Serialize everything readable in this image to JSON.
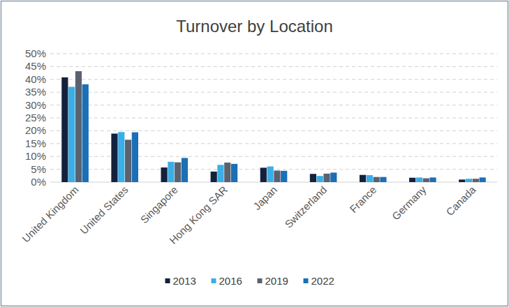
{
  "chart_data": {
    "type": "bar",
    "title": "Turnover by Location",
    "categories": [
      "United Kingdom",
      "United States",
      "Singapore",
      "Hong Kong SAR",
      "Japan",
      "Switzerland",
      "France",
      "Germany",
      "Canada"
    ],
    "series": [
      {
        "name": "2013",
        "color": "#14213d",
        "values": [
          40.8,
          18.9,
          5.7,
          4.1,
          5.6,
          3.2,
          2.8,
          1.7,
          1.0
        ]
      },
      {
        "name": "2016",
        "color": "#3aaee6",
        "values": [
          37.1,
          19.5,
          7.9,
          6.7,
          6.1,
          2.4,
          2.7,
          1.8,
          1.3
        ]
      },
      {
        "name": "2019",
        "color": "#5a6270",
        "values": [
          43.2,
          16.5,
          7.7,
          7.6,
          4.5,
          3.3,
          2.0,
          1.5,
          1.3
        ]
      },
      {
        "name": "2022",
        "color": "#1b6fb5",
        "values": [
          38.1,
          19.4,
          9.4,
          7.1,
          4.4,
          3.7,
          2.0,
          1.8,
          1.8
        ]
      }
    ],
    "ylim": [
      0,
      50
    ],
    "yticks": [
      {
        "value": 0,
        "label": "0%"
      },
      {
        "value": 5,
        "label": "5%"
      },
      {
        "value": 10,
        "label": "10%"
      },
      {
        "value": 15,
        "label": "15%"
      },
      {
        "value": 20,
        "label": "20%"
      },
      {
        "value": 25,
        "label": "25%"
      },
      {
        "value": 30,
        "label": "30%"
      },
      {
        "value": 35,
        "label": "35%"
      },
      {
        "value": 40,
        "label": "40%"
      },
      {
        "value": 45,
        "label": "45%"
      },
      {
        "value": 50,
        "label": "50%"
      }
    ],
    "grid": true,
    "legend": "bottom"
  }
}
